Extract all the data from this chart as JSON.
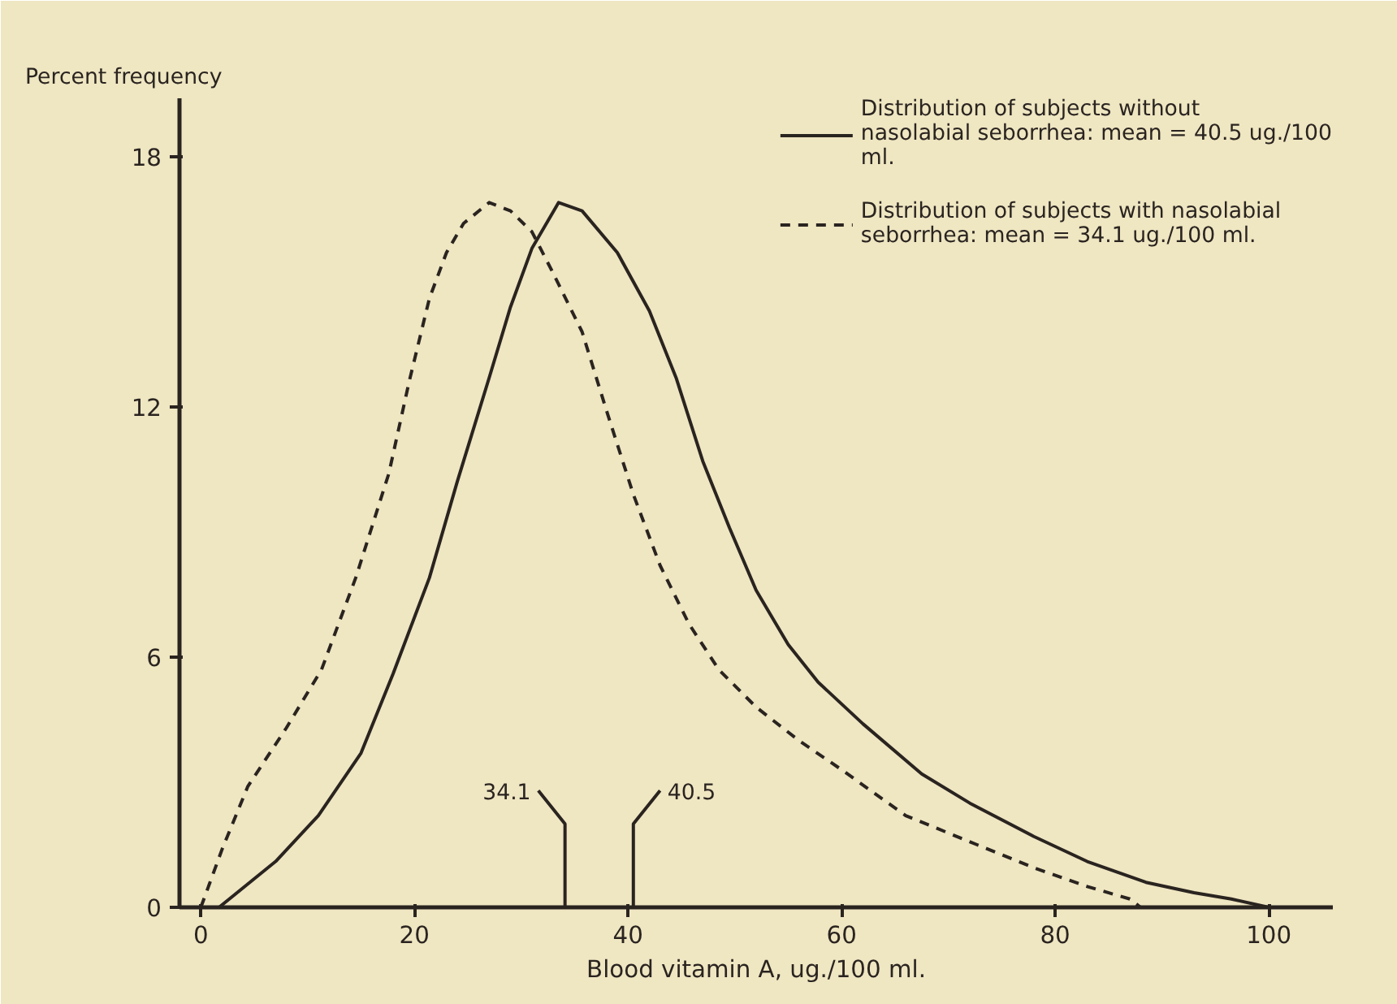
{
  "chart_data": {
    "type": "line",
    "xlabel": "Blood vitamin A, ug./100 ml.",
    "ylabel": "Percent frequency",
    "xlim": [
      -2,
      106
    ],
    "ylim": [
      0,
      19.4
    ],
    "xticks": [
      0,
      20,
      40,
      60,
      80,
      100
    ],
    "yticks": [
      0,
      6,
      12,
      18
    ],
    "grid": false,
    "legend": "top right",
    "marker": "none",
    "series": [
      {
        "name": "Distribution of subjects without nasolabial seborrhea: mean = 40.5 ug./100 ml.",
        "color": "#2a2420",
        "line_style": "solid",
        "x": [
          1.7,
          7,
          11,
          15,
          18,
          21.4,
          24,
          27,
          29,
          31,
          33.5,
          35.7,
          39,
          42,
          44.5,
          47,
          49.5,
          52,
          55,
          57.8,
          62,
          67.5,
          72,
          78,
          83,
          88.5,
          93,
          96.5,
          100
        ],
        "values": [
          0,
          1.1,
          2.2,
          3.7,
          5.6,
          7.9,
          10.2,
          12.7,
          14.4,
          15.8,
          16.9,
          16.7,
          15.7,
          14.3,
          12.7,
          10.7,
          9.1,
          7.6,
          6.3,
          5.4,
          4.4,
          3.2,
          2.5,
          1.7,
          1.1,
          0.6,
          0.35,
          0.2,
          0
        ]
      },
      {
        "name": "Distribution of subjects with nasolabial seborrhea: mean = 34.1 ug./100 ml.",
        "color": "#2a2420",
        "line_style": "dashed",
        "x": [
          0,
          2,
          4.4,
          8,
          11.3,
          14.5,
          17.6,
          19.5,
          21.4,
          23,
          24.6,
          27,
          29,
          31,
          33,
          35.7,
          38,
          40.5,
          43,
          45.7,
          48.5,
          52,
          56,
          60,
          66,
          72.7,
          78,
          83,
          87,
          88
        ],
        "values": [
          0,
          1.4,
          2.9,
          4.3,
          5.7,
          7.9,
          10.4,
          12.6,
          14.6,
          15.7,
          16.4,
          16.9,
          16.7,
          16.2,
          15.2,
          13.8,
          11.9,
          9.9,
          8.2,
          6.8,
          5.7,
          4.8,
          4.0,
          3.3,
          2.2,
          1.5,
          0.95,
          0.5,
          0.2,
          0
        ]
      }
    ],
    "ref_lines": [
      {
        "axis": "x",
        "value": 34.1,
        "label": "34.1",
        "color": "#2a2420"
      },
      {
        "axis": "x",
        "value": 40.5,
        "label": "40.5",
        "color": "#2a2420"
      }
    ]
  }
}
